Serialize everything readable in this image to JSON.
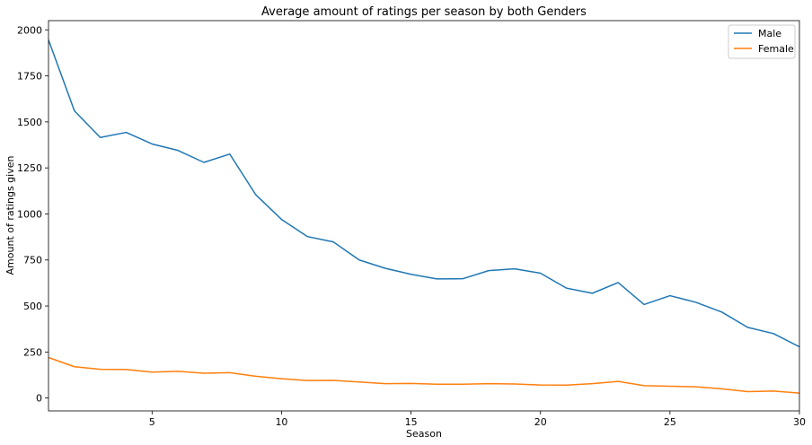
{
  "chart_data": {
    "type": "line",
    "title": "Average amount of ratings per season by both Genders",
    "xlabel": "Season",
    "ylabel": "Amount of ratings given",
    "xlim": [
      1,
      30
    ],
    "ylim": [
      -70,
      2050
    ],
    "xticks": [
      5,
      10,
      15,
      20,
      25,
      30
    ],
    "yticks": [
      0,
      250,
      500,
      750,
      1000,
      1250,
      1500,
      1750,
      2000
    ],
    "grid": false,
    "legend_position": "top-right",
    "x": [
      1,
      2,
      3,
      4,
      5,
      6,
      7,
      8,
      9,
      10,
      11,
      12,
      13,
      14,
      15,
      16,
      17,
      18,
      19,
      20,
      21,
      22,
      23,
      24,
      25,
      26,
      27,
      28,
      29,
      30
    ],
    "series": [
      {
        "name": "Male",
        "color": "#1f77b4",
        "values": [
          1945,
          1560,
          1415,
          1443,
          1380,
          1345,
          1280,
          1325,
          1105,
          970,
          877,
          848,
          750,
          705,
          672,
          647,
          648,
          692,
          702,
          678,
          597,
          569,
          627,
          508,
          556,
          520,
          467,
          384,
          350,
          278
        ]
      },
      {
        "name": "Female",
        "color": "#ff7f0e",
        "values": [
          220,
          170,
          156,
          155,
          141,
          145,
          135,
          138,
          118,
          105,
          95,
          96,
          87,
          78,
          79,
          75,
          75,
          78,
          76,
          71,
          70,
          78,
          90,
          67,
          64,
          61,
          50,
          35,
          38,
          27
        ]
      }
    ]
  }
}
